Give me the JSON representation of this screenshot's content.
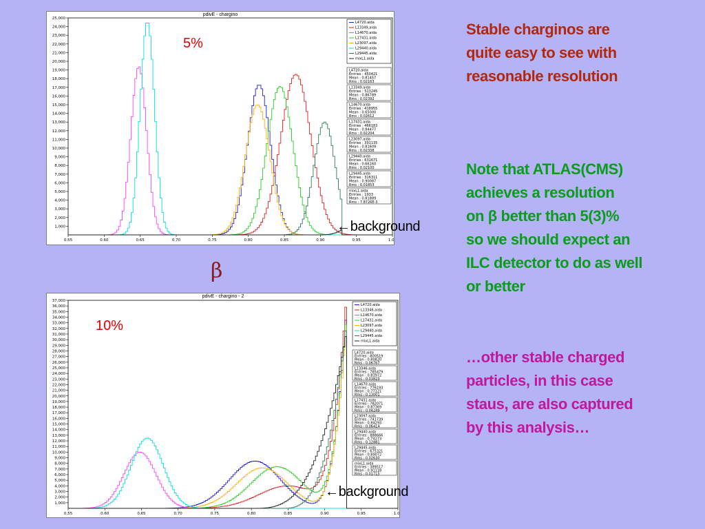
{
  "annotations": {
    "top_percent": "5%",
    "bottom_percent": "10%",
    "background_top": "←background",
    "background_bottom": "←background",
    "beta_symbol": "β"
  },
  "notes": {
    "note1": [
      "Stable charginos are",
      "quite easy to see with",
      "reasonable resolution"
    ],
    "note2": [
      "Note that ATLAS(CMS)",
      "achieves a  resolution",
      "on  β  better than 5(3)%",
      "so we should expect an",
      "ILC detector to do as well",
      "or better"
    ],
    "note3": [
      "…other stable charged",
      "particles, in this case",
      "staus, are also captured",
      "by this analysis…"
    ],
    "colors": {
      "note1": "#b2280f",
      "note2": "#0a9c1a",
      "note3": "#c0189a",
      "percent": "#e00000"
    }
  },
  "chart_data": [
    {
      "type": "line",
      "title": "pdivE - chargino",
      "xlim": [
        0.55,
        1.0
      ],
      "ylim": [
        0,
        25000
      ],
      "x_ticks": [
        "0.55",
        "0.60",
        "0.65",
        "0.70",
        "0.75",
        "0.80",
        "0.85",
        "0.90",
        "0.95",
        "1.00"
      ],
      "y_ticks": [
        "1,000",
        "2,000",
        "3,000",
        "4,000",
        "5,000",
        "6,000",
        "7,000",
        "8,000",
        "9,000",
        "10,000",
        "11,000",
        "12,000",
        "13,000",
        "14,000",
        "15,000",
        "16,000",
        "17,000",
        "18,000",
        "19,000",
        "20,000",
        "21,000",
        "22,000",
        "23,000",
        "24,000",
        "25,000"
      ],
      "series": [
        {
          "name": "L4720.aida",
          "color": "#1a1ad0",
          "shape": "gauss",
          "mu": 0.815,
          "sigma": 0.016,
          "amp": 17300,
          "stats": {
            "entries": "450421",
            "mean": "0.81457",
            "rms": "0.02163"
          }
        },
        {
          "name": "L13349.aida",
          "color": "#e01a1a",
          "shape": "gauss",
          "mu": 0.866,
          "sigma": 0.021,
          "amp": 18500,
          "stats": {
            "entries": "513245",
            "mean": "0.86789",
            "rms": "0.02392"
          }
        },
        {
          "name": "L14670.aida",
          "color": "#ff40ff",
          "shape": "gauss",
          "mu": 0.648,
          "sigma": 0.011,
          "amp": 19400,
          "stats": {
            "entries": "418955",
            "mean": "0.65000",
            "rms": "0.02612"
          }
        },
        {
          "name": "L17431.aida",
          "color": "#22cc22",
          "shape": "gauss",
          "mu": 0.844,
          "sigma": 0.018,
          "amp": 17100,
          "stats": {
            "entries": "466183",
            "mean": "0.84477",
            "rms": "0.02204"
          }
        },
        {
          "name": "L23097.aida",
          "color": "#ffb000",
          "shape": "gauss",
          "mu": 0.813,
          "sigma": 0.017,
          "amp": 15000,
          "stats": {
            "entries": "391135",
            "mean": "0.81609",
            "rms": "0.02338"
          }
        },
        {
          "name": "L29440.aida",
          "color": "#00e0e0",
          "shape": "gauss",
          "mu": 0.66,
          "sigma": 0.01,
          "amp": 24600,
          "stats": {
            "entries": "631671",
            "mean": "0.66160",
            "rms": "0.02100"
          }
        },
        {
          "name": "L29445.aida",
          "color": "#2e7a55",
          "shape": "gauss",
          "mu": 0.906,
          "sigma": 0.015,
          "amp": 13000,
          "cut": 0.93,
          "stats": {
            "entries": "316311",
            "mean": "0.90087",
            "rms": "0.01853"
          }
        },
        {
          "name": "mixL1.aida",
          "color": "#202020",
          "shape": "rising",
          "start": 0.895,
          "end": 0.93,
          "amp": 600,
          "stats": {
            "entries": "1933",
            "mean": "0.81889",
            "rms": "7.8726E-3"
          }
        }
      ]
    },
    {
      "type": "line",
      "title": "pdivE - chargino - 2",
      "xlim": [
        0.55,
        1.0
      ],
      "ylim": [
        0,
        37000
      ],
      "x_ticks": [
        "0.55",
        "0.60",
        "0.65",
        "0.70",
        "0.75",
        "0.80",
        "0.85",
        "0.90",
        "0.95",
        "1.00"
      ],
      "y_ticks": [
        "1,000",
        "2,000",
        "3,000",
        "4,000",
        "5,000",
        "6,000",
        "7,000",
        "8,000",
        "9,000",
        "10,000",
        "11,000",
        "12,000",
        "13,000",
        "14,000",
        "15,000",
        "16,000",
        "17,000",
        "18,000",
        "19,000",
        "20,000",
        "21,000",
        "22,000",
        "23,000",
        "24,000",
        "25,000",
        "26,000",
        "27,000",
        "28,000",
        "29,000",
        "30,000",
        "31,000",
        "32,000",
        "33,000",
        "34,000",
        "35,000",
        "36,000",
        "37,000"
      ],
      "series": [
        {
          "name": "L4720.aida",
          "color": "#1a1ad0",
          "shape": "gauss_rise",
          "mu": 0.805,
          "sigma": 0.035,
          "amp": 8400,
          "start": 0.87,
          "tail": 36000,
          "stats": {
            "entries": "800519",
            "mean": "0.80820",
            "rms": "0.06767"
          }
        },
        {
          "name": "L13346.aida",
          "color": "#e01a1a",
          "shape": "gauss_rise",
          "mu": 0.85,
          "sigma": 0.04,
          "amp": 4000,
          "start": 0.86,
          "tail": 37500,
          "stats": {
            "entries": "785479",
            "mean": "0.83972",
            "rms": "0.03823"
          }
        },
        {
          "name": "L14670.aida",
          "color": "#ff40ff",
          "shape": "gauss",
          "mu": 0.648,
          "sigma": 0.022,
          "amp": 10000,
          "stats": {
            "entries": "776193",
            "mean": "0.77121",
            "rms": "0.13001"
          }
        },
        {
          "name": "L17431.aida",
          "color": "#22cc22",
          "shape": "gauss_rise",
          "mu": 0.835,
          "sigma": 0.035,
          "amp": 7400,
          "start": 0.87,
          "tail": 35000,
          "stats": {
            "entries": "782071",
            "mean": "0.87369",
            "rms": "0.04249"
          }
        },
        {
          "name": "L23097.aida",
          "color": "#ffb000",
          "shape": "gauss_rise",
          "mu": 0.815,
          "sigma": 0.035,
          "amp": 7200,
          "start": 0.87,
          "tail": 34000,
          "stats": {
            "entries": "741739",
            "mean": "0.84293",
            "rms": "0.06414"
          }
        },
        {
          "name": "L29440.aida",
          "color": "#00e0e0",
          "shape": "gauss",
          "mu": 0.658,
          "sigma": 0.022,
          "amp": 12500,
          "stats": {
            "entries": "888666",
            "mean": "0.74273",
            "rms": "0.12881"
          }
        },
        {
          "name": "L29445.aida",
          "color": "#2e7a55",
          "shape": "rising",
          "start": 0.84,
          "end": 0.93,
          "amp": 33000,
          "stats": {
            "entries": "675321",
            "mean": "0.89072",
            "rms": "0.02630"
          }
        },
        {
          "name": "mixL1.aida",
          "color": "#202020",
          "shape": "rising",
          "start": 0.8,
          "end": 0.93,
          "amp": 31500,
          "stats": {
            "entries": "389517",
            "mean": "0.91118",
            "rms": "0.01715"
          }
        }
      ]
    }
  ]
}
